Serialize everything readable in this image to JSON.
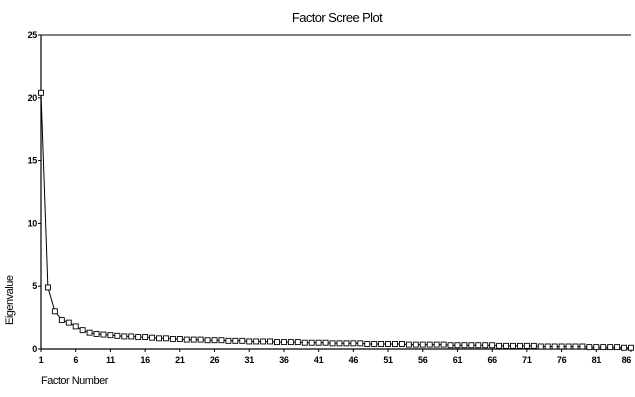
{
  "chart_data": {
    "type": "line",
    "title": "Factor Scree Plot",
    "xlabel": "Factor Number",
    "ylabel": "Eigenvalue",
    "xlim": [
      1,
      86
    ],
    "ylim": [
      0,
      25
    ],
    "xticks": [
      "1",
      "6",
      "11",
      "16",
      "21",
      "26",
      "31",
      "36",
      "41",
      "46",
      "51",
      "56",
      "61",
      "66",
      "71",
      "76",
      "81",
      "86"
    ],
    "yticks": [
      "0",
      "5",
      "10",
      "15",
      "20",
      "25"
    ],
    "grid": false,
    "marker": "square",
    "series": [
      {
        "x": [
          1,
          2,
          3,
          4,
          5,
          6,
          7,
          8,
          9,
          10,
          11,
          12,
          13,
          14,
          15,
          16,
          17,
          18,
          19,
          20,
          21,
          22,
          23,
          24,
          25,
          26,
          27,
          28,
          29,
          30,
          31,
          32,
          33,
          34,
          35,
          36,
          37,
          38,
          39,
          40,
          41,
          42,
          43,
          44,
          45,
          46,
          47,
          48,
          49,
          50,
          51,
          52,
          53,
          54,
          55,
          56,
          57,
          58,
          59,
          60,
          61,
          62,
          63,
          64,
          65,
          66,
          67,
          68,
          69,
          70,
          71,
          72,
          73,
          74,
          75,
          76,
          77,
          78,
          79,
          80,
          81,
          82,
          83,
          84,
          85,
          86
        ],
        "values": [
          20.4,
          4.9,
          3.0,
          2.3,
          2.1,
          1.8,
          1.5,
          1.3,
          1.2,
          1.15,
          1.1,
          1.05,
          1.0,
          1.0,
          0.95,
          0.95,
          0.9,
          0.85,
          0.85,
          0.8,
          0.8,
          0.75,
          0.75,
          0.75,
          0.7,
          0.7,
          0.7,
          0.65,
          0.65,
          0.65,
          0.6,
          0.6,
          0.6,
          0.6,
          0.55,
          0.55,
          0.55,
          0.55,
          0.5,
          0.5,
          0.5,
          0.5,
          0.45,
          0.45,
          0.45,
          0.45,
          0.45,
          0.4,
          0.4,
          0.4,
          0.4,
          0.4,
          0.4,
          0.35,
          0.35,
          0.35,
          0.35,
          0.35,
          0.35,
          0.3,
          0.3,
          0.3,
          0.3,
          0.3,
          0.3,
          0.3,
          0.25,
          0.25,
          0.25,
          0.25,
          0.25,
          0.25,
          0.2,
          0.2,
          0.2,
          0.2,
          0.2,
          0.2,
          0.2,
          0.15,
          0.15,
          0.15,
          0.15,
          0.15,
          0.1,
          0.1
        ]
      }
    ]
  }
}
